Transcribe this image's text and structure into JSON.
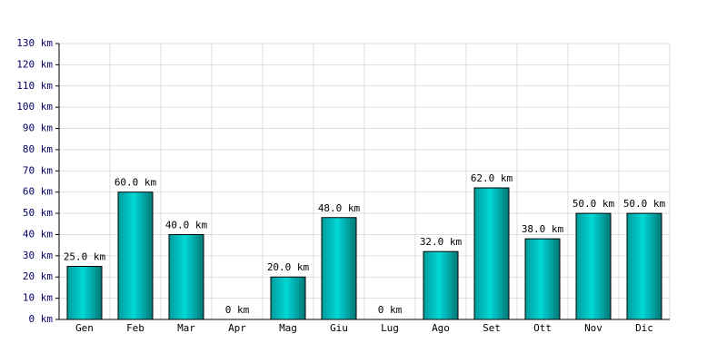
{
  "chart_data": {
    "type": "bar",
    "categories": [
      "Gen",
      "Feb",
      "Mar",
      "Apr",
      "Mag",
      "Giu",
      "Lug",
      "Ago",
      "Set",
      "Ott",
      "Nov",
      "Dic"
    ],
    "values": [
      25,
      60,
      40,
      0,
      20,
      48,
      0,
      32,
      62,
      38,
      50,
      50
    ],
    "value_labels": [
      "25.0 km",
      "60.0 km",
      "40.0 km",
      "0 km",
      "20.0 km",
      "48.0 km",
      "0 km",
      "32.0 km",
      "62.0 km",
      "38.0 km",
      "50.0 km",
      "50.0 km"
    ],
    "color": "#00d8d8",
    "ylim": [
      0,
      130
    ],
    "yticks": [
      {
        "value": 0,
        "label": "0 km"
      },
      {
        "value": 10,
        "label": "10 km"
      },
      {
        "value": 20,
        "label": "20 km"
      },
      {
        "value": 30,
        "label": "30 km"
      },
      {
        "value": 40,
        "label": "40 km"
      },
      {
        "value": 50,
        "label": "50 km"
      },
      {
        "value": 60,
        "label": "60 km"
      },
      {
        "value": 70,
        "label": "70 km"
      },
      {
        "value": 80,
        "label": "80 km"
      },
      {
        "value": 90,
        "label": "90 km"
      },
      {
        "value": 100,
        "label": "100 km"
      },
      {
        "value": 110,
        "label": "110 km"
      },
      {
        "value": 120,
        "label": "120 km"
      },
      {
        "value": 130,
        "label": "130 km"
      }
    ],
    "grid": true
  }
}
